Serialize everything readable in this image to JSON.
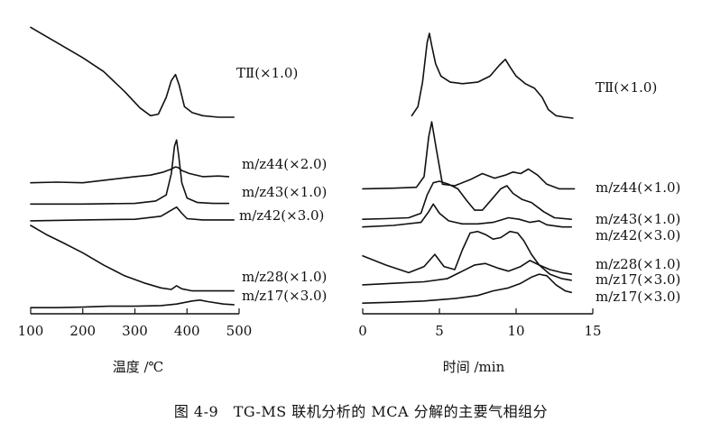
{
  "caption": "图 4-9　TG-MS 联机分析的 MCA 分解的主要气相组分",
  "chart_data": [
    {
      "type": "line",
      "xlabel": "温度 /℃",
      "ylabel": "",
      "xlim": [
        100,
        500
      ],
      "x_ticks": [
        "100",
        "200",
        "300",
        "400",
        "500"
      ],
      "grid": false,
      "series": [
        {
          "name": "TⅡ(×1.0)",
          "x": [
            100,
            130,
            160,
            200,
            240,
            280,
            310,
            330,
            345,
            360,
            370,
            378,
            385,
            395,
            410,
            430,
            460,
            490
          ],
          "y": [
            9.4,
            9.1,
            8.8,
            8.4,
            7.95,
            7.3,
            6.75,
            6.5,
            6.55,
            7.1,
            7.65,
            7.85,
            7.5,
            6.8,
            6.6,
            6.5,
            6.45,
            6.45
          ]
        },
        {
          "name": "m/z44(×2.0)",
          "x": [
            100,
            150,
            200,
            250,
            300,
            330,
            355,
            370,
            378,
            383,
            390,
            405,
            430,
            460,
            480
          ],
          "y": [
            4.3,
            4.32,
            4.3,
            4.4,
            4.5,
            4.55,
            4.65,
            4.75,
            4.82,
            4.8,
            4.7,
            4.6,
            4.5,
            4.52,
            4.5
          ]
        },
        {
          "name": "m/z43(×1.0)",
          "x": [
            100,
            200,
            300,
            340,
            360,
            370,
            376,
            380,
            384,
            390,
            400,
            420,
            450,
            480
          ],
          "y": [
            3.6,
            3.6,
            3.62,
            3.7,
            3.9,
            4.6,
            5.5,
            5.7,
            5.2,
            4.3,
            3.8,
            3.65,
            3.62,
            3.62
          ]
        },
        {
          "name": "m/z42(×3.0)",
          "x": [
            100,
            200,
            300,
            350,
            370,
            380,
            390,
            400,
            430,
            460,
            490
          ],
          "y": [
            3.05,
            3.08,
            3.1,
            3.2,
            3.4,
            3.5,
            3.3,
            3.12,
            3.08,
            3.08,
            3.08
          ]
        },
        {
          "name": "m/z28(×1.0)",
          "x": [
            100,
            130,
            160,
            200,
            240,
            280,
            320,
            350,
            370,
            380,
            390,
            410,
            440,
            470,
            490
          ],
          "y": [
            2.9,
            2.6,
            2.35,
            2.0,
            1.6,
            1.25,
            1.0,
            0.85,
            0.8,
            0.92,
            0.82,
            0.75,
            0.75,
            0.75,
            0.75
          ]
        },
        {
          "name": "m/z17(×3.0)",
          "x": [
            100,
            150,
            200,
            250,
            300,
            350,
            380,
            410,
            425,
            440,
            470,
            490
          ],
          "y": [
            0.2,
            0.2,
            0.22,
            0.25,
            0.25,
            0.27,
            0.32,
            0.42,
            0.45,
            0.4,
            0.32,
            0.3
          ]
        }
      ]
    },
    {
      "type": "line",
      "xlabel": "时间 /min",
      "ylabel": "",
      "xlim": [
        0,
        15
      ],
      "x_ticks": [
        "0",
        "5",
        "10",
        "15"
      ],
      "grid": false,
      "series": [
        {
          "name": "TⅡ(×1.0)",
          "x": [
            3.2,
            3.6,
            3.9,
            4.2,
            4.35,
            4.5,
            4.75,
            5.1,
            5.7,
            6.5,
            7.5,
            8.3,
            8.9,
            9.3,
            9.6,
            10.0,
            10.6,
            11.2,
            11.7,
            12.1,
            12.6,
            13.2,
            13.7
          ],
          "y": [
            6.5,
            6.8,
            7.6,
            8.9,
            9.2,
            8.8,
            8.2,
            7.8,
            7.6,
            7.55,
            7.6,
            7.8,
            8.15,
            8.35,
            8.1,
            7.8,
            7.55,
            7.4,
            7.1,
            6.7,
            6.5,
            6.45,
            6.42
          ]
        },
        {
          "name": "m/z44(×1.0)",
          "x": [
            0,
            2,
            3.5,
            4.0,
            4.3,
            4.5,
            4.8,
            5.2,
            6.0,
            7.0,
            7.8,
            8.6,
            9.3,
            9.8,
            10.3,
            10.8,
            11.4,
            12.0,
            12.8,
            13.8
          ],
          "y": [
            4.1,
            4.12,
            4.15,
            4.5,
            5.8,
            6.3,
            5.4,
            4.25,
            4.2,
            4.4,
            4.6,
            4.45,
            4.55,
            4.65,
            4.6,
            4.75,
            4.55,
            4.25,
            4.1,
            4.1
          ]
        },
        {
          "name": "m/z43(×1.0)",
          "x": [
            0,
            1.5,
            3,
            3.8,
            4.2,
            4.6,
            5.0,
            5.6,
            6.2,
            6.8,
            7.3,
            7.8,
            8.4,
            9.0,
            9.4,
            9.8,
            10.4,
            11.0,
            11.8,
            12.5,
            13.6
          ],
          "y": [
            3.1,
            3.12,
            3.15,
            3.3,
            3.9,
            4.3,
            4.35,
            4.25,
            4.1,
            3.7,
            3.4,
            3.4,
            3.75,
            4.1,
            4.2,
            3.95,
            3.75,
            3.65,
            3.35,
            3.15,
            3.1
          ]
        },
        {
          "name": "m/z42(×3.0)",
          "x": [
            0,
            2,
            3.8,
            4.3,
            4.6,
            5.0,
            5.6,
            6.5,
            7.5,
            8.5,
            9.5,
            10.2,
            10.9,
            11.5,
            12.0,
            13.0,
            13.6
          ],
          "y": [
            2.85,
            2.9,
            3.0,
            3.35,
            3.6,
            3.3,
            3.05,
            2.95,
            2.95,
            3.0,
            3.15,
            3.1,
            3.0,
            3.05,
            2.92,
            2.85,
            2.85
          ]
        },
        {
          "name": "m/z28(×1.0)",
          "x": [
            0,
            1.5,
            3,
            4.0,
            4.7,
            5.3,
            6.0,
            6.5,
            7.0,
            7.5,
            8.0,
            8.5,
            9.0,
            9.6,
            10.1,
            10.5,
            11.0,
            11.5,
            12.2,
            13.0,
            13.6
          ],
          "y": [
            1.9,
            1.6,
            1.35,
            1.55,
            1.95,
            1.55,
            1.45,
            2.1,
            2.65,
            2.7,
            2.6,
            2.45,
            2.5,
            2.7,
            2.65,
            2.4,
            1.95,
            1.6,
            1.45,
            1.35,
            1.3
          ]
        },
        {
          "name": "m/z17(×3.0)",
          "x": [
            0,
            2,
            4,
            5.5,
            6.5,
            7.3,
            8.0,
            8.8,
            9.5,
            10.3,
            10.9,
            11.5,
            12.2,
            13.0,
            13.6
          ],
          "y": [
            0.95,
            1.0,
            1.05,
            1.15,
            1.4,
            1.6,
            1.65,
            1.5,
            1.4,
            1.55,
            1.75,
            1.6,
            1.3,
            1.15,
            1.1
          ]
        },
        {
          "name": "m/z17(×3.0)",
          "x": [
            0,
            2,
            4,
            6,
            7.5,
            8.5,
            9.5,
            10.3,
            11.0,
            11.5,
            12.0,
            12.6,
            13.2,
            13.6
          ],
          "y": [
            0.35,
            0.38,
            0.42,
            0.5,
            0.6,
            0.75,
            0.85,
            1.0,
            1.2,
            1.3,
            1.25,
            0.95,
            0.75,
            0.7
          ]
        }
      ]
    }
  ]
}
